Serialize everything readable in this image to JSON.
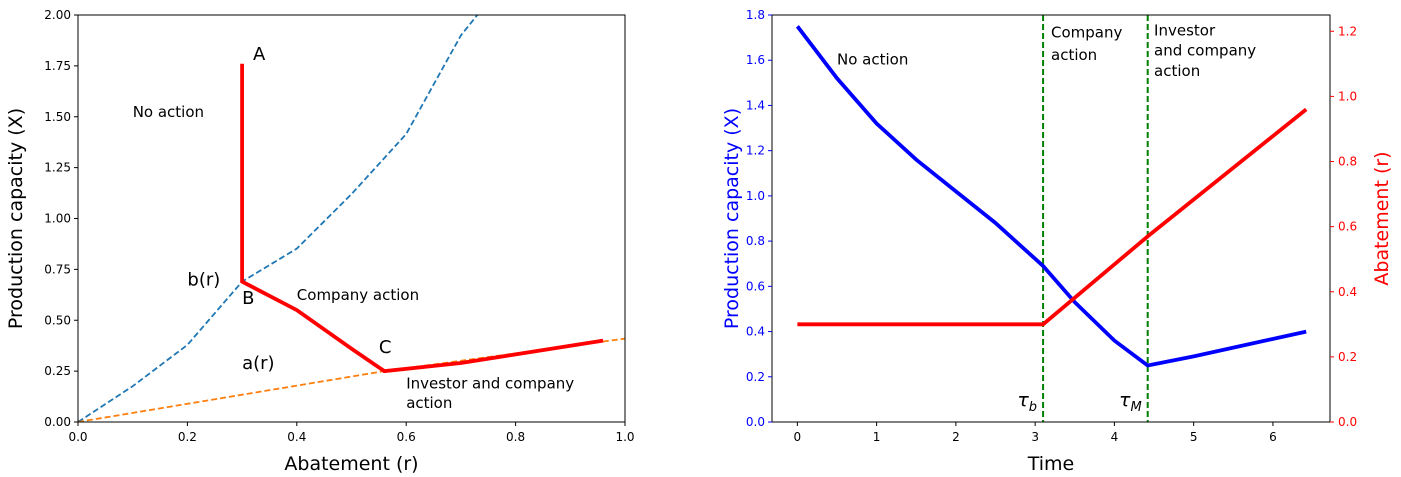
{
  "chart_data": [
    {
      "type": "line",
      "xlabel": "Abatement (r)",
      "ylabel": "Production capacity (X)",
      "xlim": [
        0,
        1.0
      ],
      "ylim": [
        0,
        2.0
      ],
      "xticks": [
        "0.0",
        "0.2",
        "0.4",
        "0.6",
        "0.8",
        "1.0"
      ],
      "yticks": [
        "0.00",
        "0.25",
        "0.50",
        "0.75",
        "1.00",
        "1.25",
        "1.50",
        "1.75",
        "2.00"
      ],
      "grid": false,
      "series": [
        {
          "color": "#1f77b4",
          "style": "dashed",
          "points": [
            [
              0,
              0
            ],
            [
              0.1,
              0.176
            ],
            [
              0.2,
              0.379
            ],
            [
              0.3,
              0.69
            ],
            [
              0.4,
              0.852
            ],
            [
              0.5,
              1.12
            ],
            [
              0.6,
              1.415
            ],
            [
              0.7,
              1.9
            ],
            [
              0.73,
              2.0
            ]
          ]
        },
        {
          "color": "#ff7f0e",
          "style": "dashed",
          "points": [
            [
              0,
              0
            ],
            [
              0.56,
              0.25
            ],
            [
              1.0,
              0.41
            ]
          ]
        },
        {
          "color": "#ff0000",
          "style": "solid",
          "points": [
            [
              0.3,
              1.76
            ],
            [
              0.3,
              0.69
            ],
            [
              0.4,
              0.55
            ],
            [
              0.5,
              0.36
            ],
            [
              0.56,
              0.25
            ],
            [
              0.7,
              0.29
            ],
            [
              0.96,
              0.4
            ]
          ]
        }
      ],
      "annotations": [
        {
          "text": "A",
          "x": 0.32,
          "y": 1.78,
          "size": "large"
        },
        {
          "text": "No action",
          "x": 0.1,
          "y": 1.5,
          "size": "normal"
        },
        {
          "text": "b(r)",
          "x": 0.2,
          "y": 0.67,
          "size": "large"
        },
        {
          "text": "B",
          "x": 0.3,
          "y": 0.58,
          "size": "large"
        },
        {
          "text": "Company action",
          "x": 0.4,
          "y": 0.6,
          "size": "normal"
        },
        {
          "text": "C",
          "x": 0.55,
          "y": 0.34,
          "size": "large"
        },
        {
          "text": "a(r)",
          "x": 0.3,
          "y": 0.26,
          "size": "large"
        },
        {
          "text": "Investor and company",
          "x": 0.6,
          "y": 0.165,
          "size": "normal"
        },
        {
          "text": "action",
          "x": 0.6,
          "y": 0.07,
          "size": "normal"
        }
      ]
    },
    {
      "type": "line",
      "xlabel": "Time",
      "ylabel": "Production capacity (X)",
      "ylabel_right": "Abatement (r)",
      "xlim": [
        -0.32,
        6.72
      ],
      "ylim": [
        0,
        1.8
      ],
      "ylim_right": [
        0,
        1.25
      ],
      "xticks": [
        "0",
        "1",
        "2",
        "3",
        "4",
        "5",
        "6"
      ],
      "yticks": [
        "0.0",
        "0.2",
        "0.4",
        "0.6",
        "0.8",
        "1.0",
        "1.2",
        "1.4",
        "1.6",
        "1.8"
      ],
      "yticks_right": [
        "0.0",
        "0.2",
        "0.4",
        "0.6",
        "0.8",
        "1.0",
        "1.2"
      ],
      "grid": false,
      "left_axis_color": "#0000ff",
      "right_axis_color": "#ff0000",
      "series": [
        {
          "axis": "left",
          "color": "#0000ff",
          "style": "solid",
          "points": [
            [
              0,
              1.75
            ],
            [
              0.5,
              1.52
            ],
            [
              1,
              1.32
            ],
            [
              1.5,
              1.16
            ],
            [
              2,
              1.02
            ],
            [
              2.5,
              0.88
            ],
            [
              3.1,
              0.69
            ],
            [
              3.5,
              0.53
            ],
            [
              4.0,
              0.36
            ],
            [
              4.42,
              0.25
            ],
            [
              5.0,
              0.29
            ],
            [
              6.42,
              0.4
            ]
          ]
        },
        {
          "axis": "right",
          "color": "#ff0000",
          "style": "solid",
          "points": [
            [
              0,
              0.3
            ],
            [
              3.1,
              0.3
            ],
            [
              4.42,
              0.57
            ],
            [
              6.42,
              0.96
            ]
          ]
        }
      ],
      "vlines": [
        {
          "x": 3.1,
          "color": "#008000",
          "style": "dashed",
          "label": "τ_b"
        },
        {
          "x": 4.42,
          "color": "#008000",
          "style": "dashed",
          "label": "τ_M"
        }
      ],
      "annotations": [
        {
          "text": "No action",
          "x": 0.5,
          "y": 1.58
        },
        {
          "text": "Company",
          "x": 3.2,
          "y": 1.7
        },
        {
          "text": "action",
          "x": 3.2,
          "y": 1.6
        },
        {
          "text": "Investor",
          "x": 4.5,
          "y": 1.71
        },
        {
          "text": "and company",
          "x": 4.5,
          "y": 1.62
        },
        {
          "text": "action",
          "x": 4.5,
          "y": 1.53
        }
      ]
    }
  ]
}
